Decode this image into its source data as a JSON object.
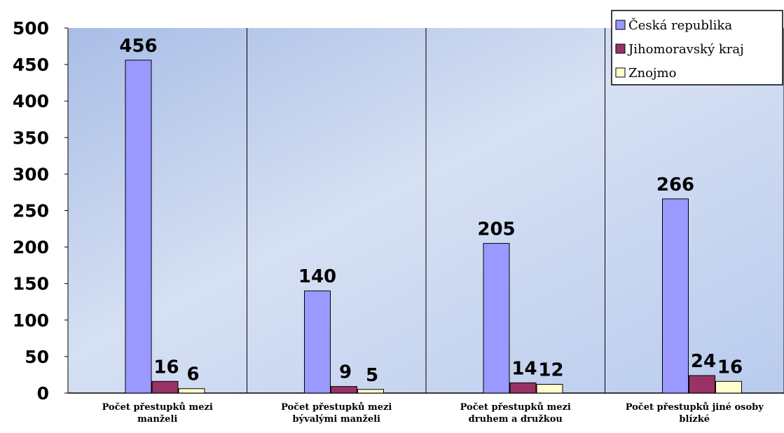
{
  "chart_data": {
    "type": "bar",
    "categories": [
      [
        "Počet přestupků mezi",
        "manželi"
      ],
      [
        "Počet přestupků mezi",
        "bývalými manželi"
      ],
      [
        "Počet přestupků mezi",
        "druhem a družkou"
      ],
      [
        "Počet přestupků jiné osoby",
        "blízké"
      ]
    ],
    "series": [
      {
        "name": "Česká republika",
        "values": [
          456,
          140,
          205,
          266
        ],
        "color": "#9999FF"
      },
      {
        "name": "Jihomoravský kraj",
        "values": [
          16,
          9,
          14,
          24
        ],
        "color": "#993366"
      },
      {
        "name": "Znojmo",
        "values": [
          6,
          5,
          12,
          16
        ],
        "color": "#FFFFCC"
      }
    ],
    "ylim": [
      0,
      500
    ],
    "yticks": [
      0,
      50,
      100,
      150,
      200,
      250,
      300,
      350,
      400,
      450,
      500
    ],
    "grid": false,
    "legend_position": "top-right",
    "plot_background": "#B8C8E8"
  }
}
